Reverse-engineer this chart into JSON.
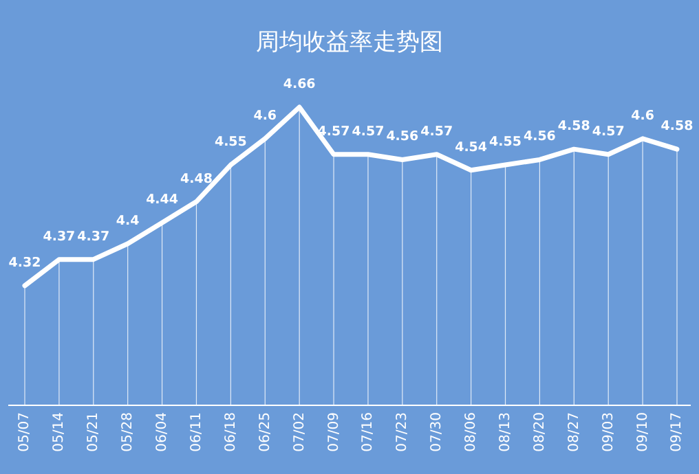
{
  "chart_data": {
    "type": "line",
    "title": "周均收益率走势图",
    "categories": [
      "05/07",
      "05/14",
      "05/21",
      "05/28",
      "06/04",
      "06/11",
      "06/18",
      "06/25",
      "07/02",
      "07/09",
      "07/16",
      "07/23",
      "07/30",
      "08/06",
      "08/13",
      "08/20",
      "08/27",
      "09/03",
      "09/10",
      "09/17"
    ],
    "values": [
      4.32,
      4.37,
      4.37,
      4.4,
      4.44,
      4.48,
      4.55,
      4.6,
      4.66,
      4.57,
      4.57,
      4.56,
      4.57,
      4.54,
      4.55,
      4.56,
      4.58,
      4.57,
      4.6,
      4.58
    ],
    "color": "#ffffff",
    "data_labels": true,
    "grid": "x"
  }
}
